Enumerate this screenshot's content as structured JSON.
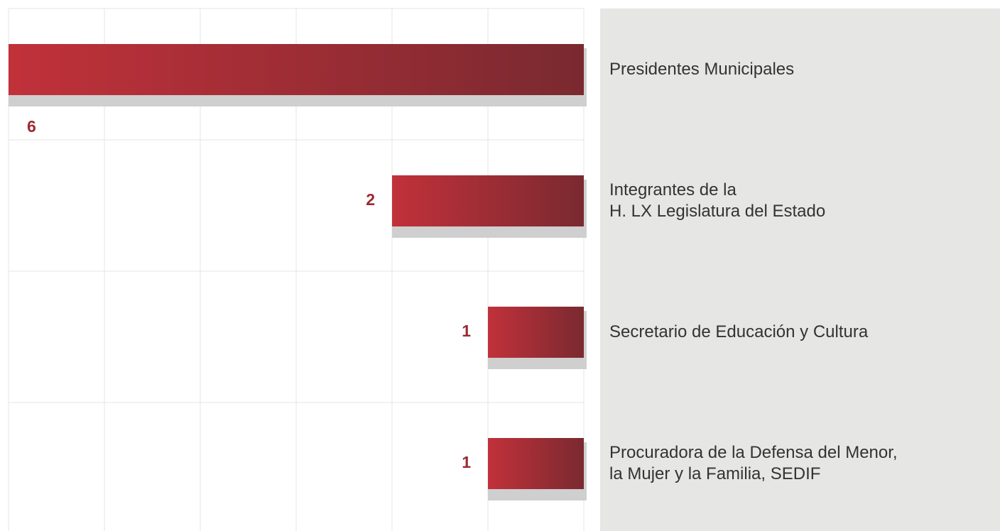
{
  "chart_data": {
    "type": "bar",
    "orientation": "horizontal",
    "x_inverted": true,
    "categories": [
      "Presidentes Municipales",
      "Integrantes de la\nH. LX Legislatura del Estado",
      "Secretario de Educación y Cultura",
      "Procuradora de la Defensa del Menor,\nla Mujer y la Familia, SEDIF"
    ],
    "values": [
      6,
      2,
      1,
      1
    ],
    "color": "#c1313a",
    "xlim": [
      0,
      6
    ],
    "xticks": [
      0,
      1,
      2,
      3,
      4,
      5,
      6
    ],
    "grid": true
  }
}
